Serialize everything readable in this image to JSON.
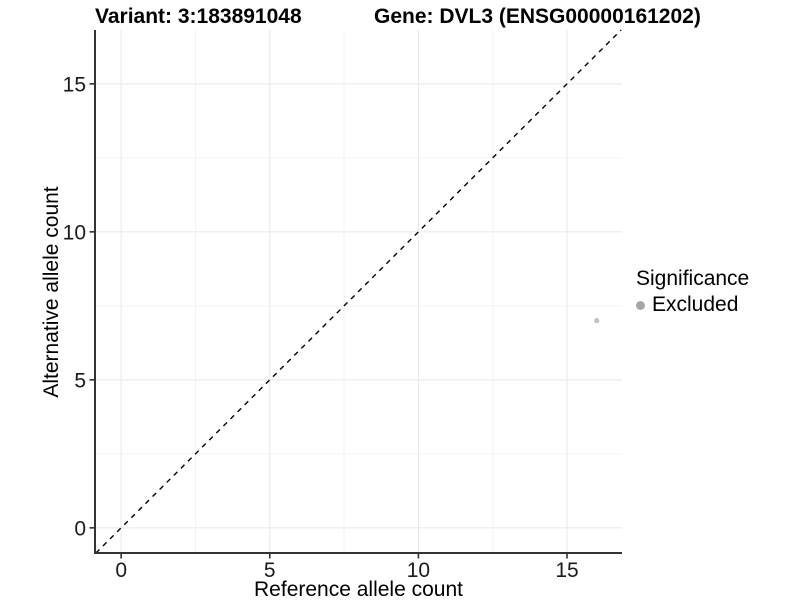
{
  "chart_data": {
    "type": "scatter",
    "title_left": "Variant: 3:183891048",
    "title_right": "Gene: DVL3 (ENSG00000161202)",
    "xlabel": "Reference allele count",
    "ylabel": "Alternative allele count",
    "xlim": [
      -0.88,
      16.85
    ],
    "ylim": [
      -0.85,
      16.82
    ],
    "x_ticks": [
      0,
      5,
      10,
      15
    ],
    "y_ticks": [
      0,
      5,
      10,
      15
    ],
    "x_minor_ticks": [
      2.5,
      7.5,
      12.5
    ],
    "y_minor_ticks": [
      2.5,
      7.5,
      12.5
    ],
    "grid": true,
    "identity_line": {
      "equation": "y = x",
      "style": "dashed",
      "color": "#000000"
    },
    "series": [
      {
        "name": "Excluded",
        "color": "#c1c1c1",
        "points": [
          {
            "x": 16,
            "y": 7
          }
        ]
      }
    ],
    "legend": {
      "title": "Significance",
      "position": "right",
      "entries": [
        {
          "label": "Excluded",
          "color": "#a6a6a6"
        }
      ]
    },
    "colors": {
      "grid_major": "#e8e8e8",
      "grid_minor": "#f3f3f3",
      "axis_line": "#333333",
      "tick_mark": "#333333",
      "tick_label": "#1a1a1a"
    }
  }
}
